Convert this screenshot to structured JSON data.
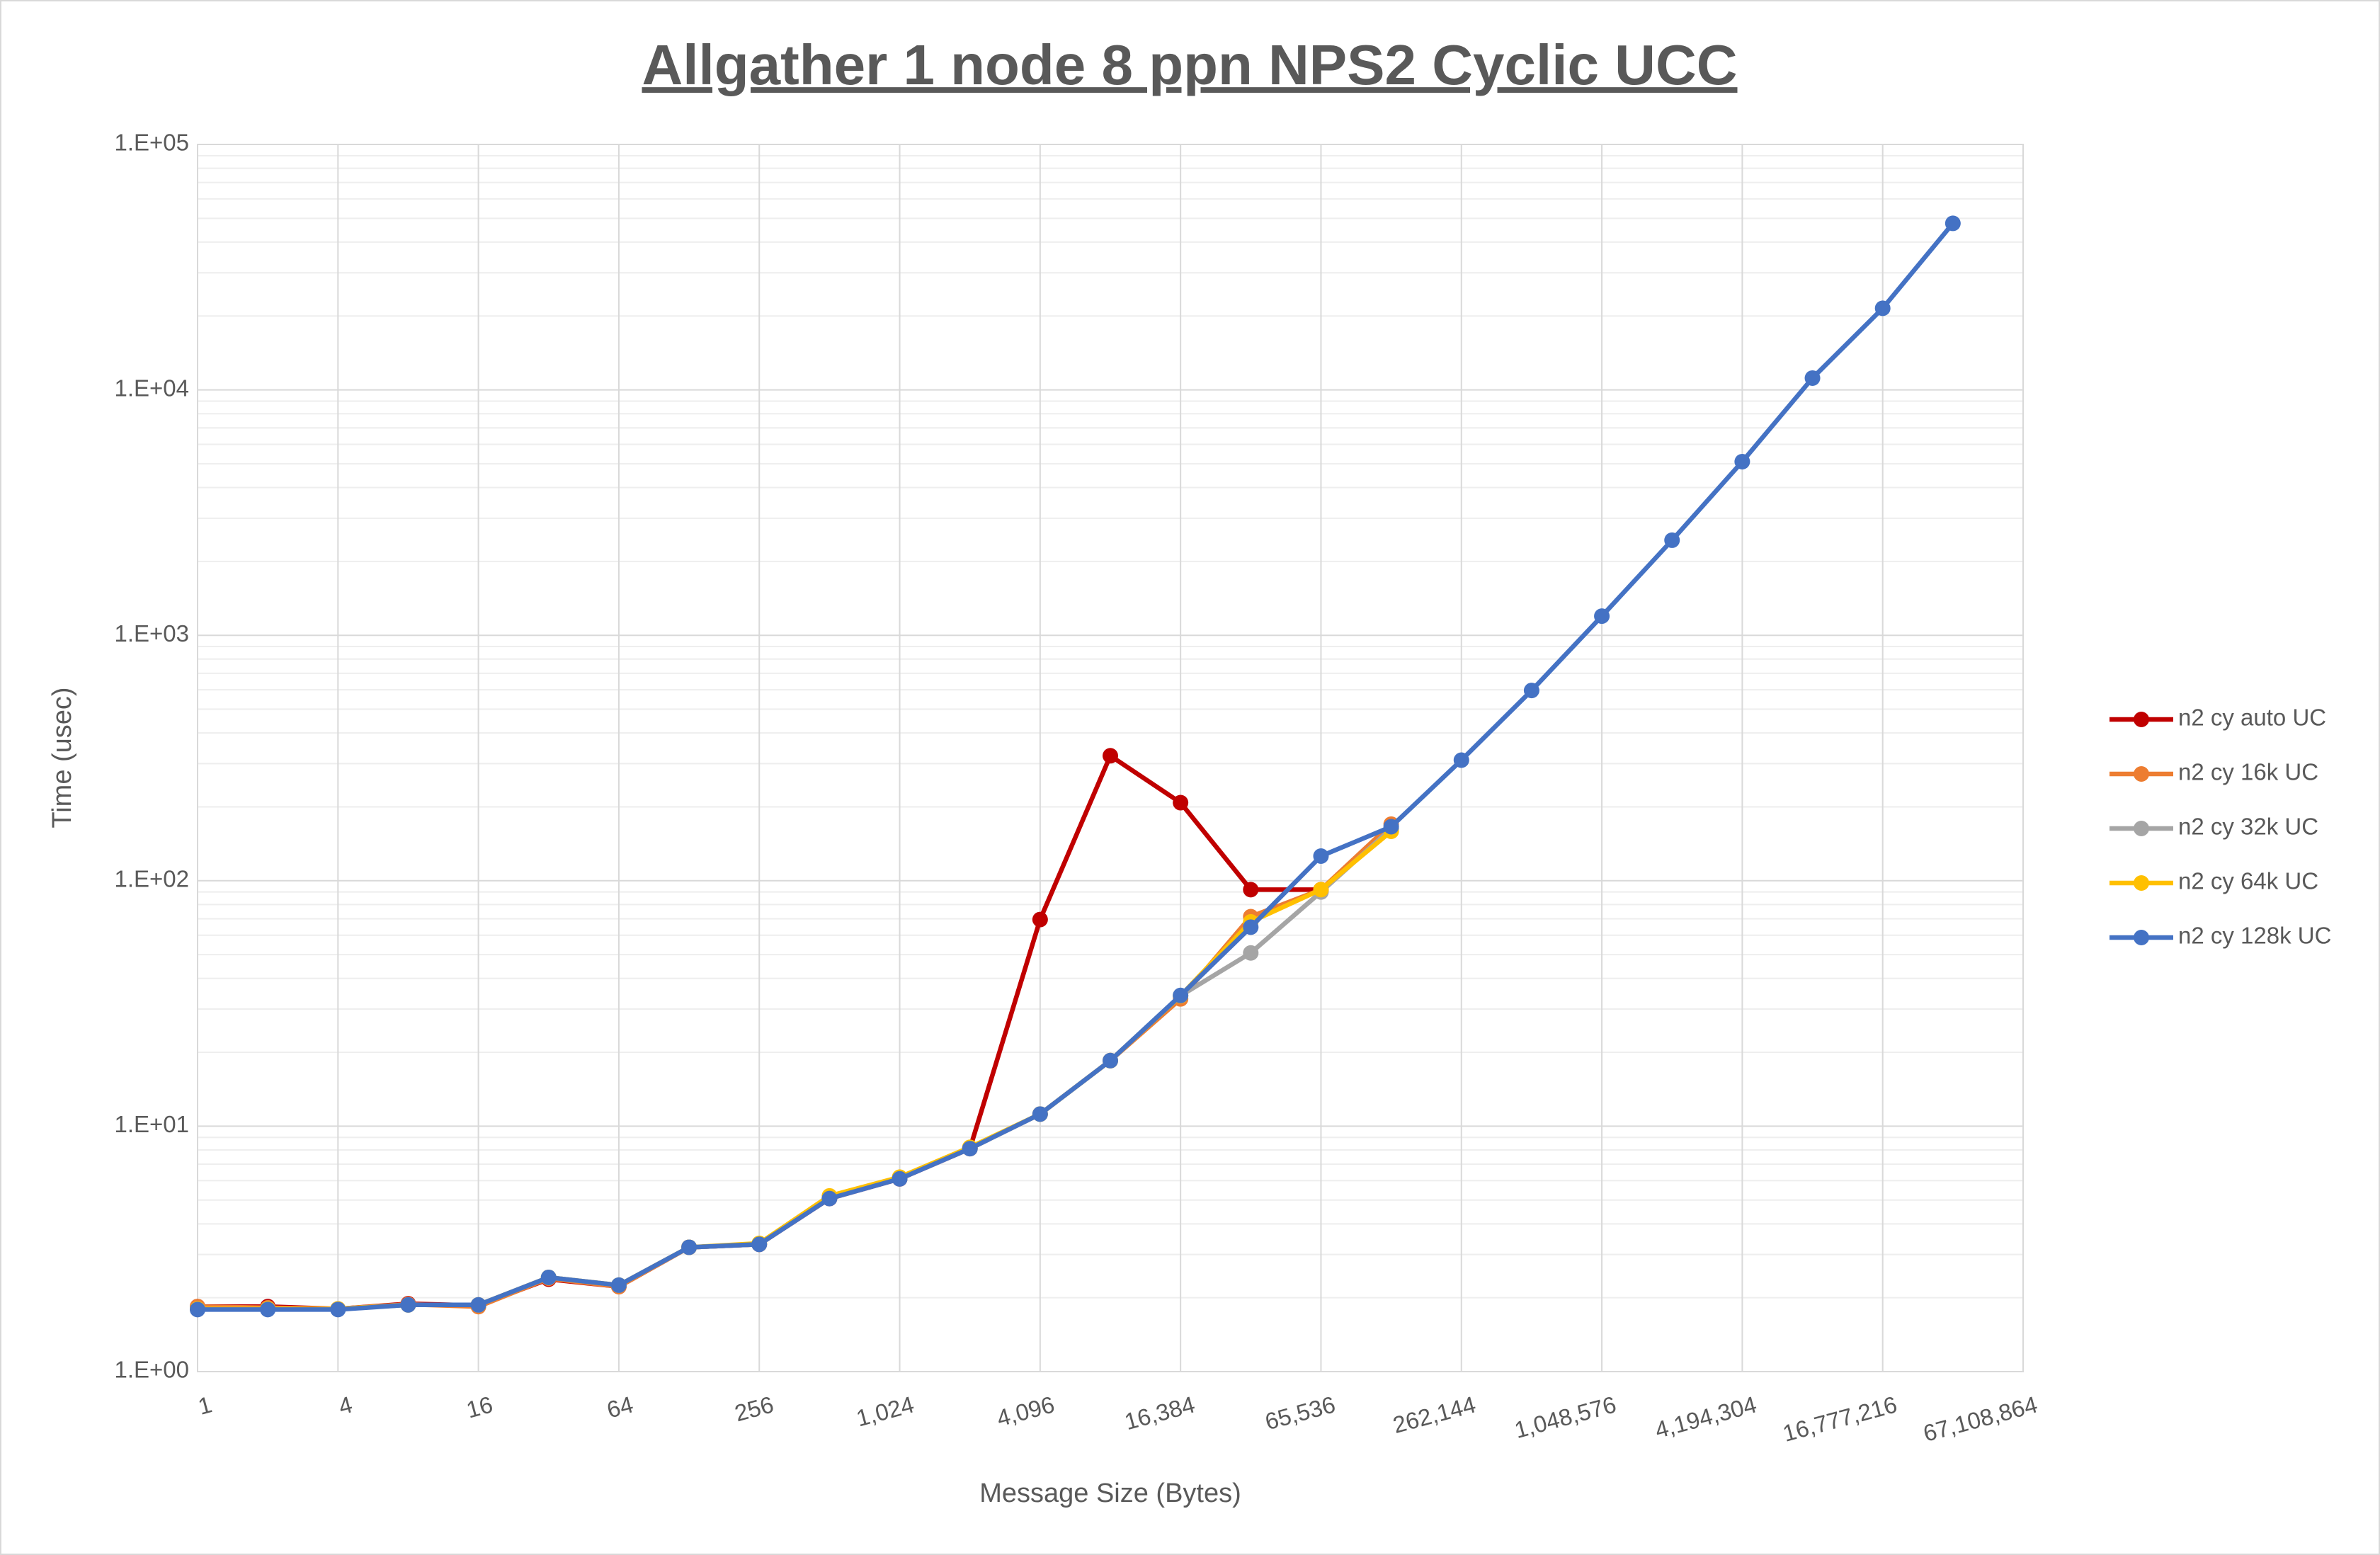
{
  "chart_data": {
    "type": "line",
    "title": "Allgather 1 node 8 ppn NPS2 Cyclic UCC",
    "x_label": "Message Size (Bytes)",
    "y_label": "Time (usec)",
    "x": [
      1,
      2,
      4,
      8,
      16,
      32,
      64,
      128,
      256,
      512,
      1024,
      2048,
      4096,
      8192,
      16384,
      32768,
      65536,
      131072,
      262144,
      524288,
      1048576,
      2097152,
      4194304,
      8388608,
      16777216,
      33554432
    ],
    "x_scale": "log2",
    "y_scale": "log10",
    "xlim": [
      1,
      67108864
    ],
    "ylim": [
      1,
      100000
    ],
    "xticks": [
      1,
      4,
      16,
      64,
      256,
      {
        "value": 1024,
        "label": "1,024"
      },
      {
        "value": 4096,
        "label": "4,096"
      },
      {
        "value": 16384,
        "label": "16,384"
      },
      {
        "value": 65536,
        "label": "65,536"
      },
      {
        "value": 262144,
        "label": "262,144"
      },
      {
        "value": 1048576,
        "label": "1,048,576"
      },
      {
        "value": 4194304,
        "label": "4,194,304"
      },
      {
        "value": 16777216,
        "label": "16,777,216"
      },
      {
        "value": 67108864,
        "label": "67,108,864"
      }
    ],
    "yticks": [
      {
        "value": 1,
        "label": "1.E+00"
      },
      {
        "value": 10,
        "label": "1.E+01"
      },
      {
        "value": 100,
        "label": "1.E+02"
      },
      {
        "value": 1000,
        "label": "1.E+03"
      },
      {
        "value": 10000,
        "label": "1.E+04"
      },
      {
        "value": 100000,
        "label": "1.E+05"
      }
    ],
    "grid": true,
    "minor_grid": true,
    "legend": "right",
    "series": [
      {
        "name": "n2 cy auto UC",
        "color": "#c00000",
        "values": [
          1.84,
          1.84,
          1.8,
          1.89,
          1.86,
          2.38,
          2.22,
          3.21,
          3.3,
          5.07,
          6.1,
          8.1,
          69.5,
          323,
          208,
          92,
          92,
          null,
          null,
          null,
          null,
          null,
          null,
          null,
          null,
          null
        ]
      },
      {
        "name": "n2 cy 16k UC",
        "color": "#ed7d31",
        "values": [
          1.84,
          1.82,
          1.8,
          1.88,
          1.84,
          2.4,
          2.22,
          3.21,
          3.3,
          5.1,
          6.15,
          8.1,
          11.2,
          18.5,
          33,
          71.4,
          92,
          170,
          null,
          null,
          null,
          null,
          null,
          null,
          null,
          null
        ]
      },
      {
        "name": "n2 cy 32k UC",
        "color": "#a5a5a5",
        "values": [
          1.8,
          1.8,
          1.8,
          1.87,
          1.87,
          2.42,
          2.25,
          3.21,
          3.3,
          5.1,
          6.15,
          8.1,
          11.2,
          18.5,
          34,
          50.8,
          90,
          163,
          null,
          null,
          null,
          null,
          null,
          null,
          null,
          null
        ]
      },
      {
        "name": "n2 cy 64k UC",
        "color": "#ffc000",
        "values": [
          1.8,
          1.8,
          1.8,
          1.87,
          1.87,
          2.42,
          2.25,
          3.21,
          3.33,
          5.2,
          6.2,
          8.2,
          11.2,
          18.5,
          34,
          68,
          92,
          159,
          null,
          null,
          null,
          null,
          null,
          null,
          null,
          null
        ]
      },
      {
        "name": "n2 cy 128k UC",
        "color": "#4472c4",
        "values": [
          1.79,
          1.79,
          1.79,
          1.87,
          1.87,
          2.42,
          2.25,
          3.21,
          3.3,
          5.07,
          6.1,
          8.1,
          11.2,
          18.5,
          34.1,
          64.7,
          126,
          166,
          310,
          596,
          1197,
          2440,
          5100,
          11170,
          21500,
          47700
        ]
      }
    ]
  }
}
